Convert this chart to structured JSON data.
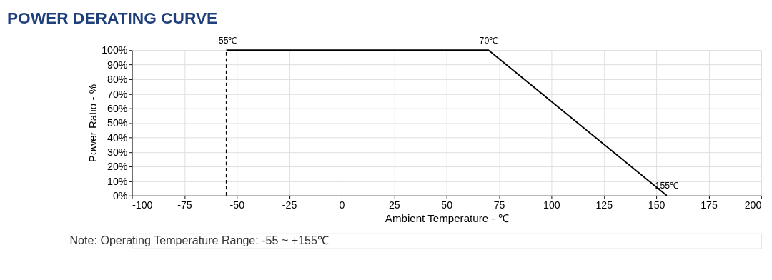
{
  "chart_data": {
    "type": "line",
    "title": "POWER DERATING CURVE",
    "xlabel": "Ambient Temperature - ℃",
    "ylabel": "Power Ratio - %",
    "series": [
      {
        "color": "#000000",
        "x": [
          -55,
          70,
          155
        ],
        "values": [
          100,
          100,
          0
        ]
      }
    ],
    "xlim": [
      -100,
      200
    ],
    "xticks": [
      -100,
      -75,
      -50,
      -25,
      0,
      25,
      50,
      75,
      100,
      125,
      150,
      175,
      200
    ],
    "ylim": [
      0,
      100
    ],
    "yticks": [
      {
        "value": 0,
        "label": "0%"
      },
      {
        "value": 10,
        "label": "10%"
      },
      {
        "value": 20,
        "label": "20%"
      },
      {
        "value": 30,
        "label": "30%"
      },
      {
        "value": 40,
        "label": "40%"
      },
      {
        "value": 50,
        "label": "50%"
      },
      {
        "value": 60,
        "label": "60%"
      },
      {
        "value": 70,
        "label": "70%"
      },
      {
        "value": 80,
        "label": "80%"
      },
      {
        "value": 90,
        "label": "90%"
      },
      {
        "value": 100,
        "label": "100%"
      }
    ],
    "ref_lines": [
      {
        "axis": "x",
        "value": -55,
        "label": "-55℃",
        "color": "#000000",
        "line_style": "dashed"
      }
    ],
    "annotations": [
      {
        "text": "70℃",
        "x": 70,
        "y": 100
      },
      {
        "text": "155℃",
        "x": 155,
        "y": 0
      },
      "Note: Operating Temperature Range: -55 ~ +155℃"
    ],
    "grid": true,
    "marker": "none",
    "line_style": "solid"
  }
}
